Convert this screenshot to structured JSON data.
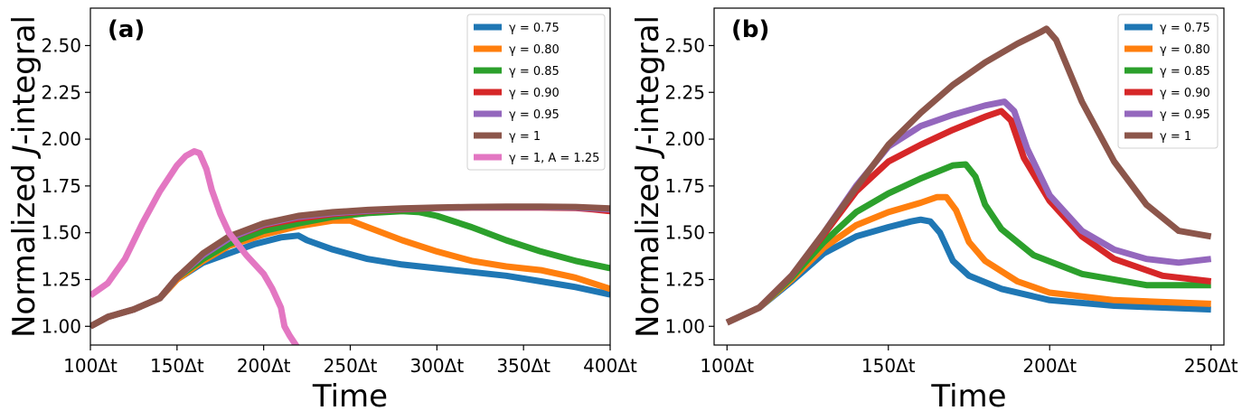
{
  "chart_data": [
    {
      "type": "line",
      "panel_label": "(a)",
      "xlabel": "Time",
      "ylabel_prefix": "Normalized ",
      "ylabel_italic": "J",
      "ylabel_suffix": "-integral",
      "xlim": [
        100,
        400
      ],
      "ylim": [
        0.9,
        2.7
      ],
      "xticks": [
        100,
        150,
        200,
        250,
        300,
        350,
        400
      ],
      "xtick_labels": [
        "100Δt",
        "150Δt",
        "200Δt",
        "250Δt",
        "300Δt",
        "350Δt",
        "400Δt"
      ],
      "yticks": [
        1.0,
        1.25,
        1.5,
        1.75,
        2.0,
        2.25,
        2.5
      ],
      "ytick_labels": [
        "1.00",
        "1.25",
        "1.50",
        "1.75",
        "2.00",
        "2.25",
        "2.50"
      ],
      "legend_position": "top-right",
      "series": [
        {
          "name": "γ = 0.75",
          "color": "#1f77b4",
          "x": [
            100,
            110,
            125,
            140,
            150,
            165,
            180,
            195,
            210,
            220,
            225,
            240,
            260,
            280,
            300,
            320,
            340,
            360,
            380,
            400
          ],
          "y": [
            1.0,
            1.05,
            1.09,
            1.15,
            1.25,
            1.34,
            1.39,
            1.44,
            1.475,
            1.485,
            1.46,
            1.41,
            1.36,
            1.33,
            1.31,
            1.29,
            1.27,
            1.24,
            1.21,
            1.17
          ]
        },
        {
          "name": "γ = 0.80",
          "color": "#ff7f0e",
          "x": [
            100,
            110,
            125,
            140,
            150,
            165,
            180,
            200,
            220,
            240,
            250,
            260,
            280,
            300,
            320,
            340,
            360,
            380,
            400
          ],
          "y": [
            1.0,
            1.05,
            1.09,
            1.15,
            1.25,
            1.35,
            1.43,
            1.49,
            1.535,
            1.565,
            1.565,
            1.53,
            1.46,
            1.4,
            1.35,
            1.32,
            1.3,
            1.26,
            1.2
          ]
        },
        {
          "name": "γ = 0.85",
          "color": "#2ca02c",
          "x": [
            100,
            110,
            125,
            140,
            150,
            165,
            180,
            200,
            220,
            240,
            260,
            280,
            290,
            300,
            320,
            340,
            360,
            380,
            400
          ],
          "y": [
            1.0,
            1.05,
            1.09,
            1.15,
            1.26,
            1.36,
            1.44,
            1.51,
            1.55,
            1.585,
            1.605,
            1.615,
            1.61,
            1.59,
            1.53,
            1.46,
            1.4,
            1.35,
            1.31
          ]
        },
        {
          "name": "γ = 0.90",
          "color": "#d62728",
          "x": [
            100,
            110,
            125,
            140,
            150,
            165,
            180,
            200,
            220,
            240,
            260,
            280,
            300,
            320,
            340,
            360,
            380,
            390,
            400
          ],
          "y": [
            1.0,
            1.05,
            1.09,
            1.15,
            1.26,
            1.38,
            1.47,
            1.54,
            1.575,
            1.6,
            1.615,
            1.625,
            1.632,
            1.635,
            1.635,
            1.635,
            1.632,
            1.625,
            1.615
          ]
        },
        {
          "name": "γ = 0.95",
          "color": "#9467bd",
          "x": [
            100,
            110,
            125,
            140,
            150,
            165,
            180,
            200,
            220,
            240,
            260,
            280,
            300,
            320,
            340,
            360,
            380,
            400
          ],
          "y": [
            1.0,
            1.05,
            1.09,
            1.15,
            1.26,
            1.38,
            1.47,
            1.545,
            1.585,
            1.605,
            1.618,
            1.627,
            1.633,
            1.636,
            1.637,
            1.637,
            1.635,
            1.625
          ]
        },
        {
          "name": "γ = 1",
          "color": "#8c564b",
          "x": [
            100,
            110,
            125,
            140,
            150,
            165,
            180,
            200,
            220,
            240,
            260,
            280,
            300,
            320,
            340,
            360,
            380,
            400
          ],
          "y": [
            1.0,
            1.05,
            1.09,
            1.15,
            1.26,
            1.39,
            1.48,
            1.55,
            1.59,
            1.61,
            1.622,
            1.63,
            1.635,
            1.638,
            1.64,
            1.64,
            1.638,
            1.63
          ]
        },
        {
          "name": "γ = 1, A = 1.25",
          "color": "#e377c2",
          "x": [
            100,
            110,
            120,
            130,
            140,
            150,
            155,
            160,
            163,
            167,
            170,
            175,
            180,
            190,
            200,
            205,
            210,
            212,
            215,
            220
          ],
          "y": [
            1.165,
            1.23,
            1.36,
            1.55,
            1.72,
            1.86,
            1.91,
            1.935,
            1.925,
            1.84,
            1.73,
            1.6,
            1.5,
            1.38,
            1.28,
            1.2,
            1.1,
            1.0,
            0.95,
            0.88
          ]
        }
      ]
    },
    {
      "type": "line",
      "panel_label": "(b)",
      "xlabel": "Time",
      "ylabel_prefix": "Normalized ",
      "ylabel_italic": "J",
      "ylabel_suffix": "-integral",
      "xlim": [
        96,
        254
      ],
      "ylim": [
        0.9,
        2.7
      ],
      "xticks": [
        100,
        150,
        200,
        250
      ],
      "xtick_labels": [
        "100Δt",
        "150Δt",
        "200Δt",
        "250Δt"
      ],
      "yticks": [
        1.0,
        1.25,
        1.5,
        1.75,
        2.0,
        2.25,
        2.5
      ],
      "ytick_labels": [
        "1.00",
        "1.25",
        "1.50",
        "1.75",
        "2.00",
        "2.25",
        "2.50"
      ],
      "legend_position": "top-right",
      "series": [
        {
          "name": "γ = 0.75",
          "color": "#1f77b4",
          "x": [
            100,
            110,
            120,
            130,
            140,
            150,
            157,
            160,
            163,
            166,
            170,
            175,
            185,
            200,
            220,
            250
          ],
          "y": [
            1.02,
            1.1,
            1.24,
            1.39,
            1.48,
            1.53,
            1.56,
            1.57,
            1.56,
            1.5,
            1.35,
            1.27,
            1.2,
            1.14,
            1.11,
            1.09
          ]
        },
        {
          "name": "γ = 0.80",
          "color": "#ff7f0e",
          "x": [
            100,
            110,
            120,
            130,
            140,
            150,
            160,
            165,
            168,
            171,
            175,
            180,
            190,
            200,
            220,
            250
          ],
          "y": [
            1.02,
            1.1,
            1.25,
            1.42,
            1.54,
            1.61,
            1.66,
            1.69,
            1.69,
            1.62,
            1.45,
            1.35,
            1.24,
            1.18,
            1.14,
            1.12
          ]
        },
        {
          "name": "γ = 0.85",
          "color": "#2ca02c",
          "x": [
            100,
            110,
            120,
            130,
            140,
            150,
            160,
            170,
            174,
            177,
            180,
            185,
            195,
            210,
            230,
            250
          ],
          "y": [
            1.02,
            1.1,
            1.26,
            1.45,
            1.61,
            1.71,
            1.79,
            1.86,
            1.865,
            1.8,
            1.65,
            1.52,
            1.38,
            1.28,
            1.22,
            1.22
          ]
        },
        {
          "name": "γ = 0.90",
          "color": "#d62728",
          "x": [
            100,
            110,
            120,
            130,
            140,
            150,
            160,
            170,
            180,
            185,
            188,
            192,
            200,
            210,
            220,
            235,
            250
          ],
          "y": [
            1.02,
            1.1,
            1.27,
            1.49,
            1.72,
            1.88,
            1.97,
            2.05,
            2.12,
            2.15,
            2.1,
            1.9,
            1.67,
            1.48,
            1.36,
            1.27,
            1.24
          ]
        },
        {
          "name": "γ = 0.95",
          "color": "#9467bd",
          "x": [
            100,
            110,
            120,
            130,
            140,
            150,
            160,
            170,
            180,
            186,
            189,
            193,
            200,
            210,
            220,
            230,
            240,
            250
          ],
          "y": [
            1.02,
            1.1,
            1.27,
            1.5,
            1.75,
            1.96,
            2.07,
            2.13,
            2.18,
            2.2,
            2.15,
            1.95,
            1.7,
            1.51,
            1.41,
            1.36,
            1.34,
            1.36
          ]
        },
        {
          "name": "γ = 1",
          "color": "#8c564b",
          "x": [
            100,
            110,
            120,
            130,
            140,
            150,
            160,
            170,
            180,
            190,
            197,
            199,
            202,
            210,
            220,
            230,
            240,
            250
          ],
          "y": [
            1.02,
            1.1,
            1.27,
            1.5,
            1.74,
            1.97,
            2.14,
            2.29,
            2.41,
            2.51,
            2.57,
            2.59,
            2.53,
            2.2,
            1.88,
            1.65,
            1.51,
            1.48
          ]
        }
      ]
    }
  ]
}
